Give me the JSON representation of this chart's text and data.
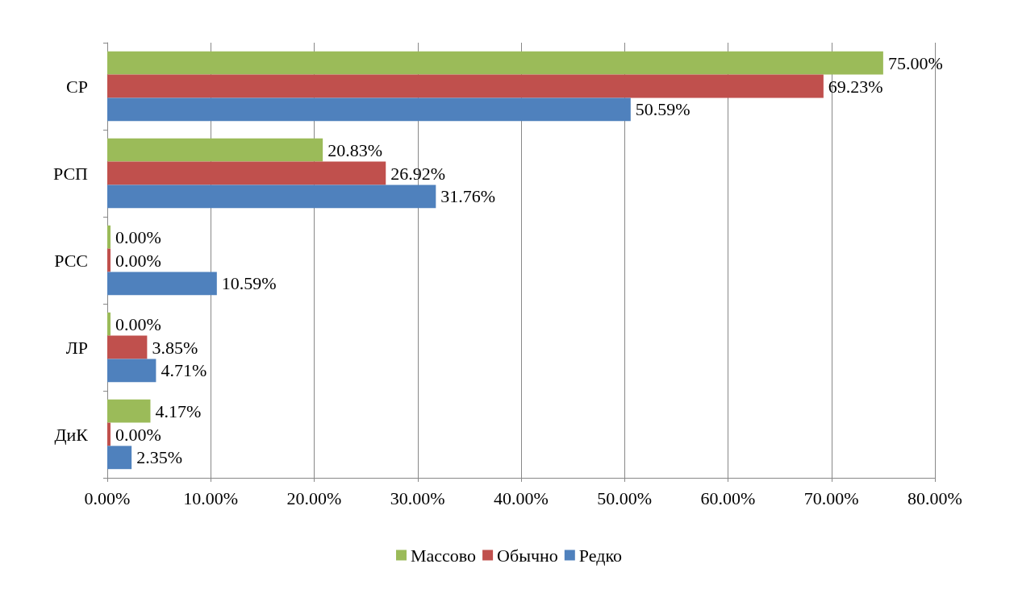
{
  "chart_data": {
    "type": "bar",
    "orientation": "horizontal",
    "categories": [
      "СР",
      "РСП",
      "РСС",
      "ЛР",
      "ДиК"
    ],
    "series": [
      {
        "name": "Массово",
        "color": "#9bbb59",
        "values": [
          75,
          20.83,
          0,
          0,
          4.17
        ],
        "value_labels": [
          "75.00%",
          "20.83%",
          "0.00%",
          "0.00%",
          "4.17%"
        ]
      },
      {
        "name": "Обычно",
        "color": "#c0504d",
        "values": [
          69.23,
          26.92,
          0,
          3.85,
          0
        ],
        "value_labels": [
          "69.23%",
          "26.92%",
          "0.00%",
          "3.85%",
          "0.00%"
        ]
      },
      {
        "name": "Редко",
        "color": "#4f81bd",
        "values": [
          50.59,
          31.76,
          10.59,
          4.71,
          2.35
        ],
        "value_labels": [
          "50.59%",
          "31.76%",
          "10.59%",
          "4.71%",
          "2.35%"
        ]
      }
    ],
    "xlim": [
      0,
      80
    ],
    "xticks": [
      {
        "value": 0,
        "label": "0.00%"
      },
      {
        "value": 10,
        "label": "10.00%"
      },
      {
        "value": 20,
        "label": "20.00%"
      },
      {
        "value": 30,
        "label": "30.00%"
      },
      {
        "value": 40,
        "label": "40.00%"
      },
      {
        "value": 50,
        "label": "50.00%"
      },
      {
        "value": 60,
        "label": "60.00%"
      },
      {
        "value": 70,
        "label": "70.00%"
      },
      {
        "value": 80,
        "label": "80.00%"
      }
    ],
    "grid": "x",
    "legend": "bottom"
  }
}
